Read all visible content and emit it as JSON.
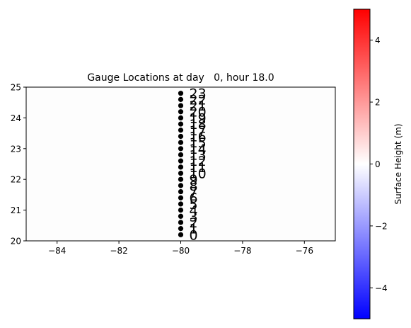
{
  "chart_data": {
    "type": "scatter",
    "title": "Gauge Locations at day   0, hour 18.0",
    "xlabel": "",
    "ylabel": "",
    "xlim": [
      -85,
      -75
    ],
    "ylim": [
      20,
      25
    ],
    "xticks": [
      "−84",
      "−82",
      "−80",
      "−78",
      "−76"
    ],
    "xtick_values": [
      -84,
      -82,
      -80,
      -78,
      -76
    ],
    "yticks": [
      "20",
      "21",
      "22",
      "23",
      "24",
      "25"
    ],
    "ytick_values": [
      20,
      21,
      22,
      23,
      24,
      25
    ],
    "grid": false,
    "marker_color": "#000000",
    "points": [
      {
        "label": "0",
        "x": -80,
        "y": 20.2
      },
      {
        "label": "1",
        "x": -80,
        "y": 20.4
      },
      {
        "label": "2",
        "x": -80,
        "y": 20.6
      },
      {
        "label": "3",
        "x": -80,
        "y": 20.8
      },
      {
        "label": "4",
        "x": -80,
        "y": 21.0
      },
      {
        "label": "5",
        "x": -80,
        "y": 21.2
      },
      {
        "label": "6",
        "x": -80,
        "y": 21.4
      },
      {
        "label": "7",
        "x": -80,
        "y": 21.6
      },
      {
        "label": "8",
        "x": -80,
        "y": 21.8
      },
      {
        "label": "9",
        "x": -80,
        "y": 22.0
      },
      {
        "label": "10",
        "x": -80,
        "y": 22.2
      },
      {
        "label": "11",
        "x": -80,
        "y": 22.4
      },
      {
        "label": "12",
        "x": -80,
        "y": 22.6
      },
      {
        "label": "13",
        "x": -80,
        "y": 22.8
      },
      {
        "label": "14",
        "x": -80,
        "y": 23.0
      },
      {
        "label": "15",
        "x": -80,
        "y": 23.2
      },
      {
        "label": "16",
        "x": -80,
        "y": 23.4
      },
      {
        "label": "17",
        "x": -80,
        "y": 23.6
      },
      {
        "label": "18",
        "x": -80,
        "y": 23.8
      },
      {
        "label": "19",
        "x": -80,
        "y": 24.0
      },
      {
        "label": "20",
        "x": -80,
        "y": 24.2
      },
      {
        "label": "21",
        "x": -80,
        "y": 24.4
      },
      {
        "label": "22",
        "x": -80,
        "y": 24.6
      },
      {
        "label": "23",
        "x": -80,
        "y": 24.8
      }
    ],
    "colorbar": {
      "label": "Surface Height (m)",
      "range": [
        -5,
        5
      ],
      "ticks": [
        "−4",
        "−2",
        "0",
        "2",
        "4"
      ],
      "tick_values": [
        -4,
        -2,
        0,
        2,
        4
      ],
      "colormap": "bwr",
      "color_low": "#0000ff",
      "color_mid": "#ffffff",
      "color_high": "#ff0000"
    }
  }
}
